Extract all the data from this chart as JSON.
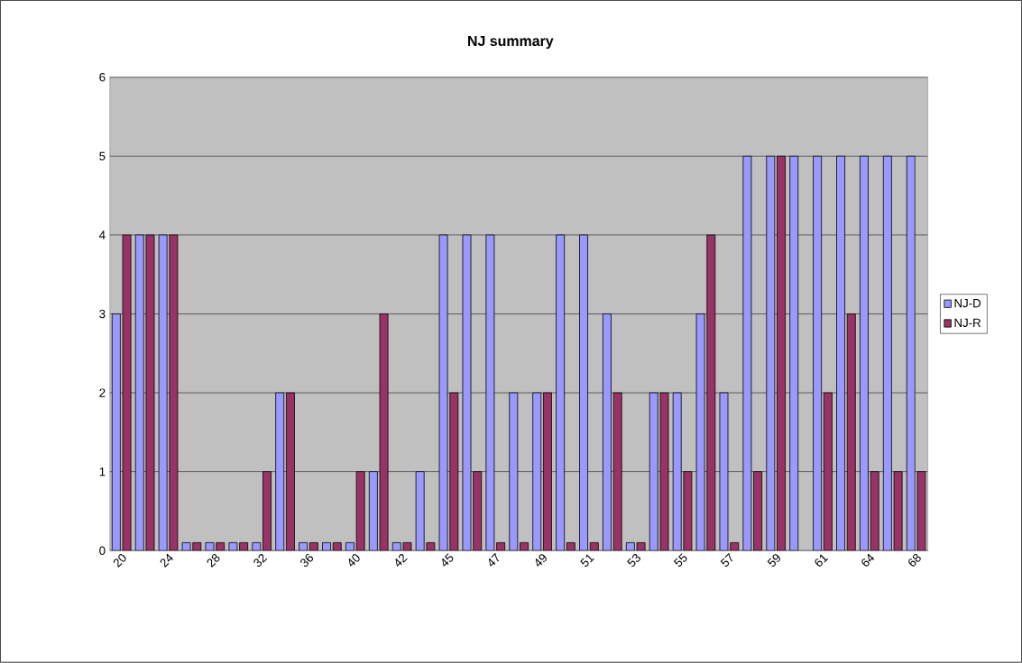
{
  "chart_data": {
    "type": "bar",
    "title": "NJ summary",
    "categories": [
      "20",
      null,
      "24",
      null,
      "28",
      null,
      "32",
      null,
      "36",
      null,
      "40",
      null,
      "42",
      null,
      "45",
      null,
      "47",
      null,
      "49",
      null,
      "51",
      null,
      "53",
      null,
      "55",
      null,
      "57",
      null,
      "59",
      null,
      "61",
      null,
      "64",
      null,
      "68"
    ],
    "series": [
      {
        "name": "NJ-D",
        "color": "#9999ff",
        "values": [
          3,
          4,
          4,
          0.1,
          0.1,
          0.1,
          0.1,
          2,
          0.1,
          0.1,
          0.1,
          1,
          0.1,
          1,
          4,
          4,
          4,
          2,
          2,
          4,
          4,
          3,
          0.1,
          2,
          2,
          3,
          2,
          5,
          5,
          5,
          5,
          5,
          5,
          5,
          5
        ]
      },
      {
        "name": "NJ-R",
        "color": "#993366",
        "values": [
          4,
          4,
          4,
          0.1,
          0.1,
          0.1,
          1,
          2,
          0.1,
          0.1,
          1,
          3,
          0.1,
          0.1,
          2,
          1,
          0.1,
          0.1,
          2,
          0.1,
          0.1,
          2,
          0.1,
          2,
          1,
          4,
          0.1,
          1,
          5,
          null,
          2,
          3,
          1,
          1,
          1
        ]
      }
    ],
    "ylim": [
      0,
      6
    ],
    "yticks": [
      0,
      1,
      2,
      3,
      4,
      5,
      6
    ],
    "grid": "y",
    "legend": "right"
  }
}
